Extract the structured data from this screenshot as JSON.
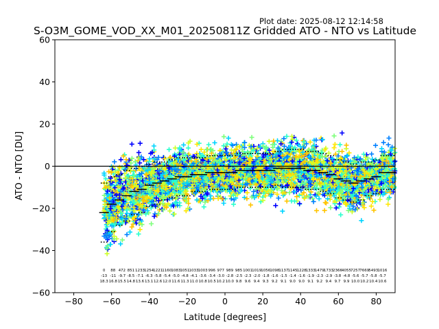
{
  "plot_date": "Plot date: 2025-08-12 12:14:58",
  "chart_data": {
    "type": "scatter",
    "title": "S-O3M_GOME_VOD_XX_M01_20250811Z Gridded ATO - NTO vs Latitude",
    "xlabel": "Latitude [degrees]",
    "ylabel": "ATO - NTO [DU]",
    "xlim": [
      -90,
      90
    ],
    "ylim": [
      -60,
      60
    ],
    "x_ticks": [
      -80,
      -60,
      -40,
      -20,
      0,
      20,
      40,
      60,
      80
    ],
    "y_ticks": [
      -60,
      -40,
      -20,
      0,
      20,
      40,
      60
    ],
    "x_tick_labels": [
      "−80",
      "−60",
      "−40",
      "−20",
      "0",
      "20",
      "40",
      "60",
      "80"
    ],
    "y_tick_labels": [
      "−60",
      "−40",
      "−20",
      "0",
      "20",
      "40",
      "60"
    ],
    "zero_line": 0,
    "grid": false,
    "marker": "+",
    "colors": [
      "#0000ff",
      "#0080ff",
      "#00d4ff",
      "#29ffce",
      "#7dff7a",
      "#ceff29",
      "#ffe600",
      "#ffc400"
    ],
    "bins": [
      -64,
      -60,
      -56,
      -52,
      -48,
      -44,
      -40,
      -36,
      -32,
      -28,
      -24,
      -20,
      -16,
      -12,
      -8,
      -4,
      0,
      4,
      8,
      12,
      16,
      20,
      24,
      28,
      32,
      36,
      40,
      44,
      48,
      52,
      56,
      60,
      64,
      68,
      72,
      76,
      80,
      84,
      88
    ],
    "bin_mean": [
      -22,
      -18,
      -16,
      -14,
      -12,
      -11,
      -9,
      -8,
      -7,
      -6,
      -5,
      -5,
      -4,
      -4,
      -3,
      -3,
      -3,
      -3,
      -2,
      -2,
      -2,
      -2,
      -2,
      -1,
      -1,
      -1,
      -1,
      -2,
      -2,
      -3,
      -4,
      -6,
      -7,
      -8,
      -7,
      -6,
      -5,
      -3,
      -3
    ],
    "bin_std": [
      14,
      13,
      12,
      12,
      11,
      11,
      10,
      10,
      9,
      9,
      9,
      9,
      8,
      8,
      8,
      8,
      8,
      8,
      8,
      8,
      8,
      8,
      8,
      8,
      9,
      9,
      9,
      9,
      9,
      9,
      9,
      9,
      9,
      9,
      9,
      8,
      8,
      8,
      8
    ],
    "bin_stats_text": [
      [
        "0",
        "-13",
        "18.3"
      ],
      [
        "88",
        "-11",
        "16.8"
      ],
      [
        "472",
        "-9.7",
        "15.5"
      ],
      [
        "851",
        "-8.5",
        "14.8"
      ],
      [
        "1233",
        "-7.1",
        "13.6"
      ],
      [
        "1254",
        "-6.3",
        "13.1"
      ],
      [
        "1221",
        "-5.8",
        "12.6"
      ],
      [
        "1160",
        "-5.4",
        "12.0"
      ],
      [
        "1083",
        "-5.0",
        "11.6"
      ],
      [
        "1051",
        "-4.8",
        "11.3"
      ],
      [
        "1033",
        "-4.1",
        "11.0"
      ],
      [
        "1003",
        "-3.6",
        "10.8"
      ],
      [
        "996",
        "-3.4",
        "10.5"
      ],
      [
        "977",
        "-3.0",
        "10.2"
      ],
      [
        "989",
        "-2.8",
        "10.0"
      ],
      [
        "985",
        "-2.5",
        "9.8"
      ],
      [
        "1001",
        "-2.3",
        "9.6"
      ],
      [
        "1019",
        "-2.0",
        "9.4"
      ],
      [
        "1056",
        "-1.8",
        "9.3"
      ],
      [
        "1098",
        "-1.6",
        "9.2"
      ],
      [
        "1137",
        "-1.5",
        "9.1"
      ],
      [
        "1145",
        "-1.4",
        "9.0"
      ],
      [
        "1228",
        "-1.6",
        "9.0"
      ],
      [
        "1333",
        "-1.9",
        "9.1"
      ],
      [
        "1479",
        "-2.3",
        "9.2"
      ],
      [
        "1733",
        "-2.9",
        "9.4"
      ],
      [
        "2366",
        "-3.8",
        "9.7"
      ],
      [
        "4055",
        "-4.8",
        "9.9"
      ],
      [
        "7257",
        "-5.6",
        "10.0"
      ],
      [
        "7669",
        "-5.7",
        "10.2"
      ],
      [
        "5493",
        "-5.8",
        "10.4"
      ],
      [
        "1016",
        "-5.7",
        "10.6"
      ]
    ]
  }
}
